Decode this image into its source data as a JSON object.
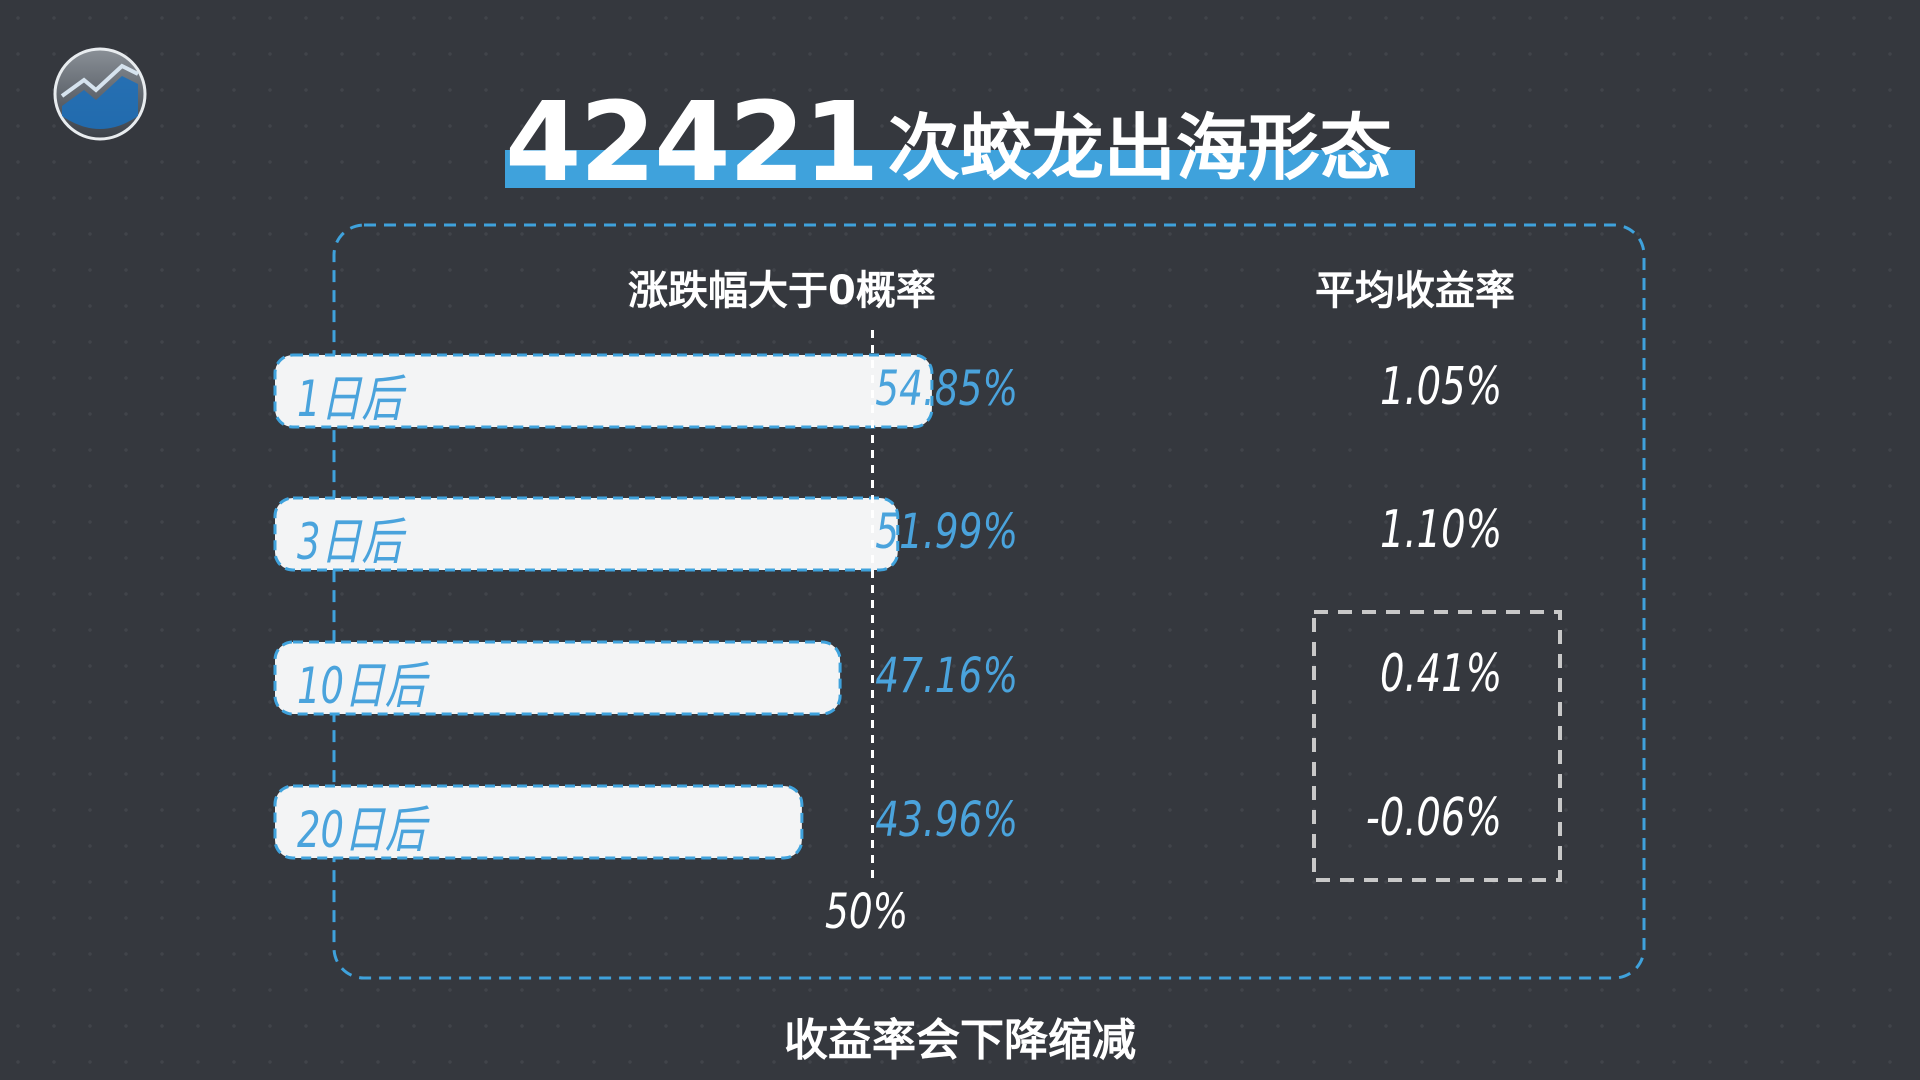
{
  "title": {
    "number": "42421",
    "text": "次蛟龙出海形态"
  },
  "footer": "收益率会下降缩减",
  "icons": {
    "logo": "stock-chart-logo-icon"
  },
  "colors": {
    "background": "#1f2229",
    "accent": "#3fa2dc",
    "bar_fill": "#f3f4f5",
    "highlight_box": "#c8c8c8"
  },
  "chart_data": {
    "type": "bar",
    "orientation": "horizontal",
    "headers": {
      "probability": "涨跌幅大于0概率",
      "avg_return": "平均收益率"
    },
    "categories": [
      "1日后",
      "3日后",
      "10日后",
      "20日后"
    ],
    "series": [
      {
        "name": "涨跌幅大于0概率",
        "values": [
          54.85,
          51.99,
          47.16,
          43.96
        ],
        "labels": [
          "54.85%",
          "51.99%",
          "47.16%",
          "43.96%"
        ]
      },
      {
        "name": "平均收益率",
        "values": [
          1.05,
          1.1,
          0.41,
          -0.06
        ],
        "labels": [
          "1.05%",
          "1.10%",
          "0.41%",
          "-0.06%"
        ]
      }
    ],
    "reference_line": {
      "value": 50,
      "label": "50%"
    },
    "highlighted_rows": [
      "10日后",
      "20日后"
    ]
  }
}
